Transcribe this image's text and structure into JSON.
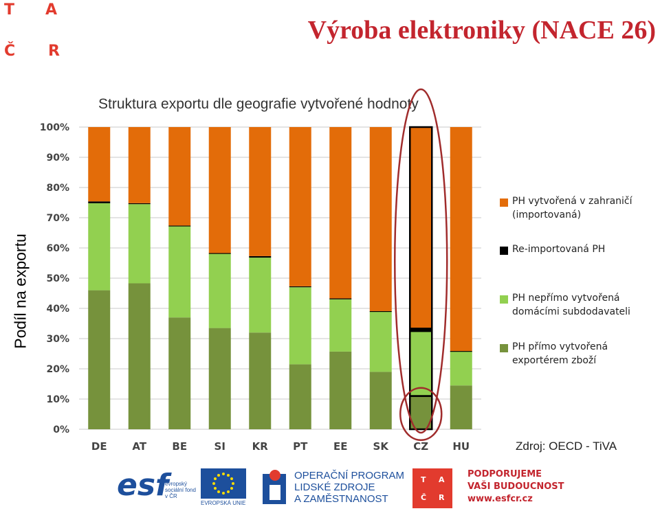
{
  "logo": {
    "letters": [
      "T",
      "A",
      "Č",
      "R"
    ]
  },
  "header": {
    "title": "Výroba elektroniky (NACE 26)",
    "subtitle": "Struktura exportu dle geografie vytvořené hodnoty"
  },
  "chart_data": {
    "type": "bar",
    "stacked": true,
    "categories": [
      "DE",
      "AT",
      "BE",
      "SI",
      "KR",
      "PT",
      "EE",
      "SK",
      "CZ",
      "HU"
    ],
    "ylabel": "Podíl na exportu",
    "ylim": [
      0,
      100
    ],
    "yticks": [
      "0%",
      "10%",
      "20%",
      "30%",
      "40%",
      "50%",
      "60%",
      "70%",
      "80%",
      "90%",
      "100%"
    ],
    "grid": true,
    "legend_position": "right",
    "series": [
      {
        "name": "PH přímo vytvořená exportérem zboží",
        "color": "#76923c",
        "values": [
          46,
          48.3,
          37,
          33.5,
          32,
          21.5,
          25.7,
          19,
          11,
          14.5
        ]
      },
      {
        "name": "PH nepřímo vytvořená domácími subdodavateli",
        "color": "#92d050",
        "values": [
          28.8,
          26.2,
          30.2,
          24.7,
          24.8,
          25.5,
          17.3,
          20,
          21.5,
          11.3
        ]
      },
      {
        "name": "Re-importovaná PH",
        "color": "#000000",
        "values": [
          0.6,
          0.3,
          0.2,
          0.1,
          0.5,
          0.3,
          0.3,
          0.1,
          0.8,
          0.1
        ]
      },
      {
        "name": "PH vytvořená v zahraničí (importovaná)",
        "color": "#e36c09",
        "values": [
          24.6,
          25.2,
          32.6,
          41.7,
          42.7,
          52.7,
          56.7,
          60.9,
          66.7,
          74.1
        ]
      }
    ],
    "highlight_category": "CZ"
  },
  "legend": {
    "items": [
      {
        "color": "#e36c09",
        "label": "PH vytvořená v zahraničí (importovaná)"
      },
      {
        "color": "#000000",
        "label": "Re-importovaná PH"
      },
      {
        "color": "#92d050",
        "label": "PH nepřímo vytvořená domácími subdodavateli"
      },
      {
        "color": "#76923c",
        "label": "PH přímo vytvořená exportérem zboží"
      }
    ]
  },
  "source": "Zdroj: OECD - TiVA",
  "footer": {
    "esf_big": "esf",
    "esf_small": "evropský sociální fond v ČR",
    "eu_label": "EVROPSKÁ UNIE",
    "op_lines": [
      "OPERAČNÍ PROGRAM",
      "LIDSKÉ ZDROJE",
      "A ZAMĚSTNANOST"
    ],
    "tacr_letters": [
      "T",
      "A",
      "Č",
      "R"
    ],
    "support_lines": [
      "PODPORUJEME",
      "VAŠI BUDOUCNOST",
      "www.esfcr.cz"
    ]
  }
}
